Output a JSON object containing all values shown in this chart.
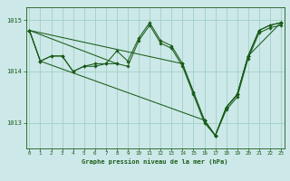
{
  "bg_color": "#cce8e8",
  "grid_color": "#99ccbb",
  "line_color": "#1a5c1a",
  "title": "Graphe pression niveau de la mer (hPa)",
  "ylim": [
    1012.5,
    1015.25
  ],
  "yticks": [
    1013,
    1014,
    1015
  ],
  "xlim": [
    -0.3,
    23.3
  ],
  "xticks": [
    0,
    1,
    2,
    3,
    4,
    5,
    6,
    7,
    8,
    9,
    10,
    11,
    12,
    13,
    14,
    15,
    16,
    17,
    18,
    19,
    20,
    21,
    22,
    23
  ],
  "series": [
    {
      "x": [
        0,
        1,
        2,
        3,
        4,
        5,
        6,
        7,
        8,
        9,
        10,
        11,
        12,
        13,
        14,
        15,
        16,
        17,
        18,
        19,
        20,
        21,
        22,
        23
      ],
      "y": [
        1014.8,
        1014.2,
        1014.3,
        1014.3,
        1014.0,
        1014.1,
        1014.1,
        1014.15,
        1014.4,
        1014.2,
        1014.65,
        1014.95,
        1014.6,
        1014.5,
        1014.15,
        1013.6,
        1013.05,
        1012.75,
        1013.3,
        1013.55,
        1014.3,
        1014.8,
        1014.9,
        1014.95
      ]
    },
    {
      "x": [
        0,
        1,
        2,
        3,
        4,
        5,
        6,
        7,
        8
      ],
      "y": [
        1014.8,
        1014.2,
        1014.3,
        1014.3,
        1014.0,
        1014.1,
        1014.15,
        1014.15,
        1014.15
      ]
    },
    {
      "x": [
        0,
        14,
        15,
        16,
        17,
        18,
        19,
        20,
        21,
        22,
        23
      ],
      "y": [
        1014.8,
        1014.15,
        1013.6,
        1013.05,
        1012.75,
        1013.3,
        1013.55,
        1014.3,
        1014.8,
        1014.9,
        1014.95
      ]
    },
    {
      "x": [
        0,
        1,
        16,
        17,
        18,
        19,
        20,
        23
      ],
      "y": [
        1014.8,
        1014.2,
        1013.05,
        1012.75,
        1013.3,
        1013.55,
        1014.3,
        1014.95
      ]
    },
    {
      "x": [
        0,
        8,
        9,
        10,
        11,
        12,
        13,
        14,
        15,
        16,
        17,
        18,
        19,
        20,
        21,
        22,
        23
      ],
      "y": [
        1014.8,
        1014.15,
        1014.1,
        1014.6,
        1014.9,
        1014.55,
        1014.45,
        1014.1,
        1013.55,
        1013.0,
        1012.75,
        1013.25,
        1013.5,
        1014.25,
        1014.75,
        1014.85,
        1014.9
      ]
    }
  ]
}
